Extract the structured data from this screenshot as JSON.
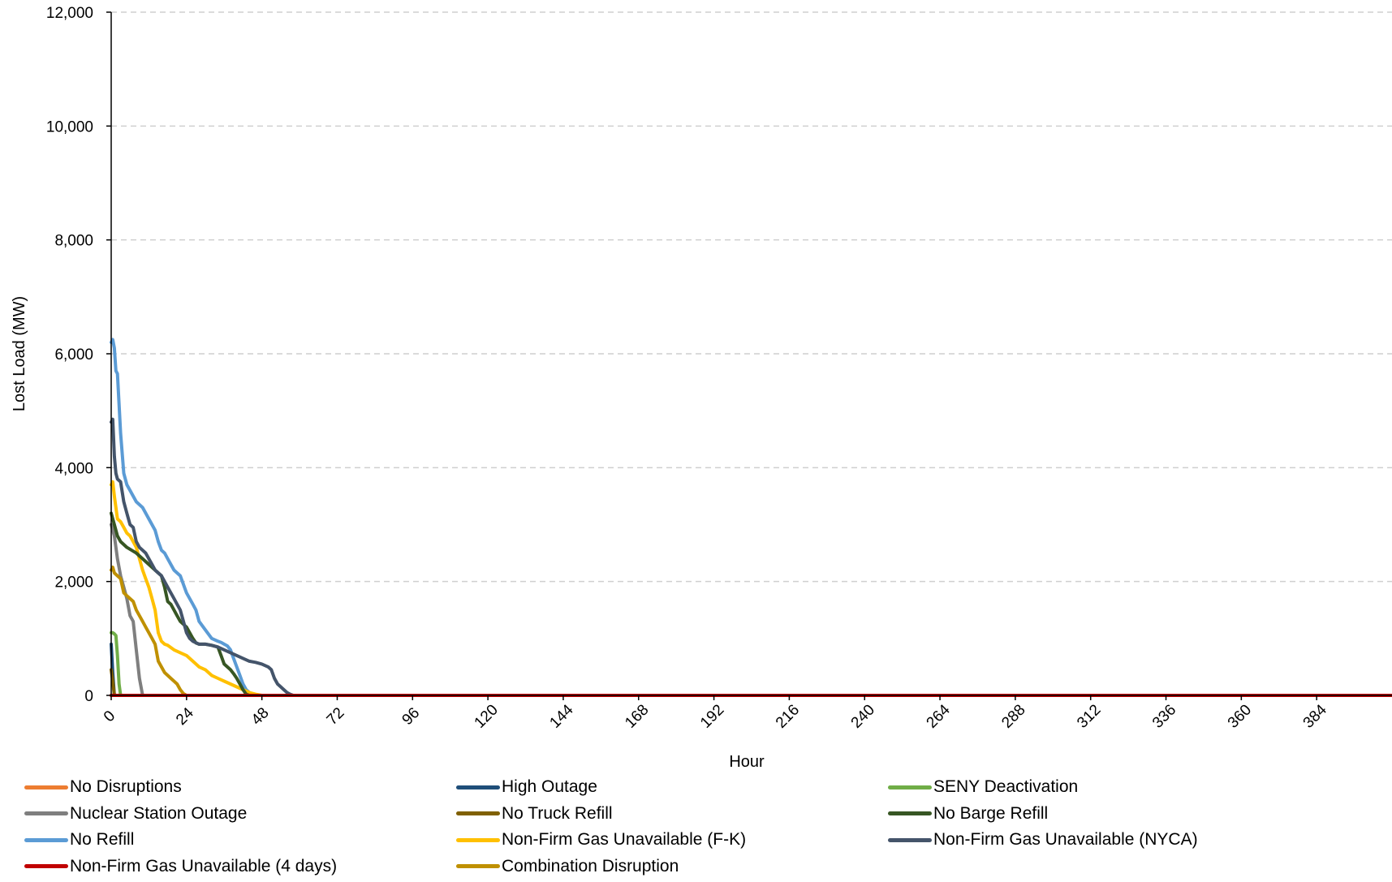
{
  "chart_data": {
    "type": "line",
    "title": "",
    "xlabel": "Hour",
    "ylabel": "Lost Load (MW)",
    "xlim": [
      0,
      408
    ],
    "ylim": [
      0,
      12000
    ],
    "x_ticks": [
      0,
      24,
      48,
      72,
      96,
      120,
      144,
      168,
      192,
      216,
      240,
      264,
      288,
      312,
      336,
      360,
      384
    ],
    "x_tick_labels": [
      "0",
      "24",
      "48",
      "72",
      "96",
      "120",
      "144",
      "168",
      "192",
      "216",
      "240",
      "264",
      "288",
      "312",
      "336",
      "360",
      "384"
    ],
    "y_ticks": [
      0,
      2000,
      4000,
      6000,
      8000,
      10000,
      12000
    ],
    "y_tick_labels": [
      "0",
      "2,000",
      "4,000",
      "6,000",
      "8,000",
      "10,000",
      "12,000"
    ],
    "grid": "horizontal dashed",
    "legend_position": "bottom",
    "series": [
      {
        "name": "No Disruptions",
        "color": "#ED7D31",
        "x": [
          0,
          408
        ],
        "y": [
          0,
          0
        ]
      },
      {
        "name": "High Outage",
        "color": "#1F4E79",
        "x": [
          0,
          0.5,
          1,
          2,
          408
        ],
        "y": [
          900,
          400,
          0,
          0,
          0
        ]
      },
      {
        "name": "SENY Deactivation",
        "color": "#70AD47",
        "x": [
          0,
          0.5,
          1,
          1.5,
          2,
          2.5,
          3,
          408
        ],
        "y": [
          1100,
          1100,
          1080,
          1050,
          700,
          200,
          0,
          0
        ]
      },
      {
        "name": "Nuclear Station Outage",
        "color": "#7F7F7F",
        "x": [
          0,
          1,
          2,
          3,
          4,
          5,
          6,
          7,
          8,
          9,
          10,
          11,
          408
        ],
        "y": [
          3000,
          2800,
          2400,
          2100,
          1900,
          1700,
          1400,
          1300,
          800,
          300,
          0,
          0,
          0
        ]
      },
      {
        "name": "No Truck Refill",
        "color": "#806000",
        "x": [
          0,
          0.5,
          1,
          408
        ],
        "y": [
          450,
          250,
          0,
          0
        ]
      },
      {
        "name": "No Barge Refill",
        "color": "#375623",
        "x": [
          0,
          1,
          2,
          3,
          5,
          8,
          10,
          12,
          14,
          16,
          17,
          18,
          19,
          20,
          21,
          22,
          24,
          26,
          27,
          28,
          30,
          32,
          34,
          35,
          36,
          37,
          38,
          39,
          40,
          41,
          42,
          43,
          44,
          408
        ],
        "y": [
          3200,
          3000,
          2800,
          2700,
          2600,
          2500,
          2400,
          2300,
          2200,
          2100,
          1900,
          1650,
          1600,
          1500,
          1400,
          1300,
          1200,
          1000,
          920,
          900,
          900,
          880,
          850,
          700,
          550,
          500,
          450,
          380,
          300,
          200,
          100,
          20,
          0,
          0
        ]
      },
      {
        "name": "No Refill",
        "color": "#5B9BD5",
        "x": [
          0,
          0.5,
          1,
          1.5,
          2,
          3,
          4,
          5,
          6,
          8,
          10,
          12,
          14,
          15,
          16,
          17,
          18,
          19,
          20,
          21,
          22,
          24,
          25,
          26,
          27,
          28,
          30,
          32,
          34,
          35,
          36,
          37,
          38,
          39,
          40,
          41,
          42,
          43,
          44,
          45,
          46,
          47,
          48,
          49,
          50,
          408
        ],
        "y": [
          6200,
          6250,
          6100,
          5700,
          5650,
          4600,
          3900,
          3700,
          3600,
          3400,
          3300,
          3100,
          2900,
          2700,
          2550,
          2500,
          2400,
          2300,
          2200,
          2150,
          2100,
          1800,
          1700,
          1600,
          1500,
          1300,
          1150,
          1000,
          950,
          930,
          900,
          870,
          800,
          650,
          500,
          350,
          200,
          100,
          50,
          20,
          0,
          0,
          0,
          0,
          0,
          0
        ]
      },
      {
        "name": "Non-Firm Gas Unavailable (F-K)",
        "color": "#FFC000",
        "x": [
          0,
          0.5,
          1,
          2,
          3,
          4,
          5,
          6,
          7,
          8,
          9,
          10,
          11,
          12,
          13,
          14,
          15,
          16,
          17,
          18,
          20,
          22,
          24,
          26,
          28,
          30,
          32,
          34,
          36,
          38,
          40,
          42,
          44,
          46,
          48,
          408
        ],
        "y": [
          3700,
          3750,
          3500,
          3100,
          3050,
          2950,
          2850,
          2800,
          2700,
          2600,
          2400,
          2200,
          2050,
          1900,
          1700,
          1500,
          1100,
          950,
          900,
          880,
          800,
          750,
          700,
          600,
          500,
          450,
          350,
          300,
          250,
          200,
          150,
          100,
          50,
          20,
          0,
          0
        ]
      },
      {
        "name": "Non-Firm Gas Unavailable (NYCA)",
        "color": "#44546A",
        "x": [
          0,
          0.5,
          1,
          1.5,
          2,
          3,
          4,
          5,
          6,
          7,
          8,
          9,
          10,
          11,
          12,
          13,
          14,
          15,
          16,
          17,
          18,
          19,
          20,
          21,
          22,
          23,
          24,
          25,
          26,
          28,
          30,
          32,
          34,
          36,
          38,
          40,
          42,
          44,
          46,
          48,
          50,
          51,
          52,
          53,
          54,
          55,
          56,
          57,
          58,
          408
        ],
        "y": [
          4800,
          4850,
          4200,
          3900,
          3800,
          3750,
          3400,
          3200,
          3000,
          2950,
          2700,
          2600,
          2550,
          2500,
          2400,
          2300,
          2200,
          2150,
          2100,
          2000,
          1900,
          1800,
          1700,
          1600,
          1500,
          1300,
          1100,
          1000,
          950,
          900,
          900,
          880,
          850,
          800,
          750,
          700,
          650,
          600,
          580,
          550,
          500,
          450,
          300,
          200,
          150,
          100,
          50,
          20,
          0,
          0
        ]
      },
      {
        "name": "Non-Firm Gas Unavailable (4 days)",
        "color": "#C00000",
        "x": [
          0,
          24,
          408
        ],
        "y": [
          0,
          0,
          0
        ]
      },
      {
        "name": "Combination Disruption",
        "color": "#BF9000",
        "x": [
          0,
          0.5,
          1,
          2,
          3,
          4,
          5,
          6,
          7,
          8,
          9,
          10,
          11,
          12,
          13,
          14,
          15,
          16,
          17,
          18,
          19,
          20,
          21,
          22,
          23,
          24,
          408
        ],
        "y": [
          2200,
          2250,
          2150,
          2100,
          2050,
          1800,
          1750,
          1700,
          1650,
          1500,
          1400,
          1300,
          1200,
          1100,
          1000,
          900,
          600,
          500,
          400,
          350,
          300,
          250,
          200,
          100,
          30,
          0,
          0
        ]
      }
    ]
  }
}
